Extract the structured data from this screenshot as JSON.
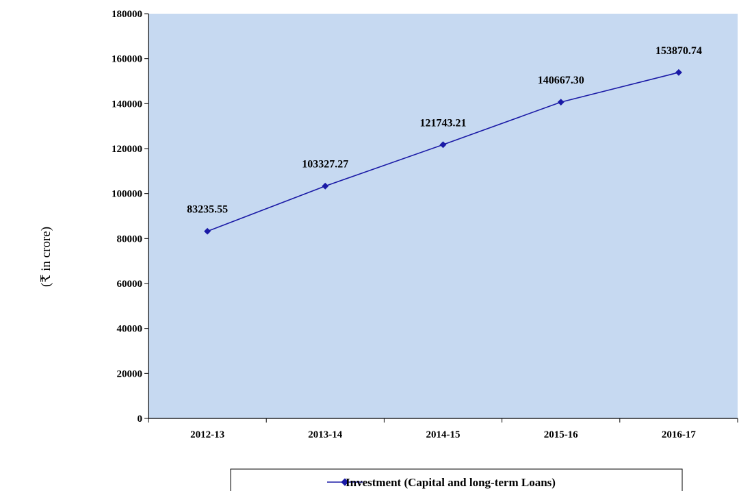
{
  "chart_data": {
    "type": "line",
    "title": "",
    "xlabel": "",
    "ylabel": "(₹ in crore)",
    "categories": [
      "2012-13",
      "2013-14",
      "2014-15",
      "2015-16",
      "2016-17"
    ],
    "series": [
      {
        "name": "Investment (Capital and long-term Loans)",
        "values": [
          83235.55,
          103327.27,
          121743.21,
          140667.3,
          153870.74
        ],
        "labels": [
          "83235.55",
          "103327.27",
          "121743.21",
          "140667.30",
          "153870.74"
        ],
        "color": "#1a1aa6"
      }
    ],
    "ylim": [
      0,
      180000
    ],
    "yticks": [
      0,
      20000,
      40000,
      60000,
      80000,
      100000,
      120000,
      140000,
      160000,
      180000
    ],
    "yticklabels": [
      "0",
      "20000",
      "40000",
      "60000",
      "80000",
      "100000",
      "120000",
      "140000",
      "160000",
      "180000"
    ],
    "grid": false,
    "legend_position": "bottom",
    "plot_background": "#c6d9f1",
    "axis_color": "#000000"
  }
}
